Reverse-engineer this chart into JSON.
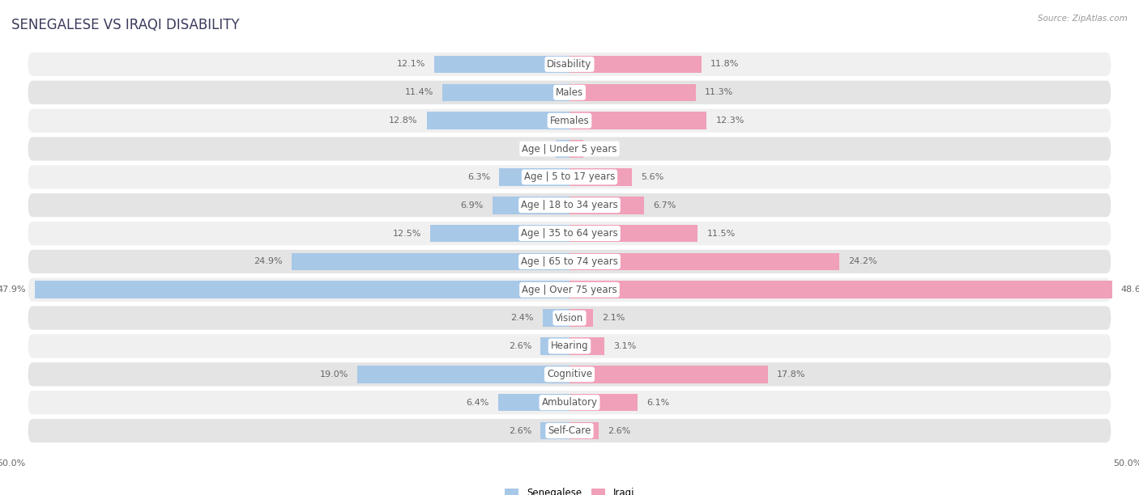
{
  "title": "SENEGALESE VS IRAQI DISABILITY",
  "source": "Source: ZipAtlas.com",
  "categories": [
    "Disability",
    "Males",
    "Females",
    "Age | Under 5 years",
    "Age | 5 to 17 years",
    "Age | 18 to 34 years",
    "Age | 35 to 64 years",
    "Age | 65 to 74 years",
    "Age | Over 75 years",
    "Vision",
    "Hearing",
    "Cognitive",
    "Ambulatory",
    "Self-Care"
  ],
  "senegalese": [
    12.1,
    11.4,
    12.8,
    1.2,
    6.3,
    6.9,
    12.5,
    24.9,
    47.9,
    2.4,
    2.6,
    19.0,
    6.4,
    2.6
  ],
  "iraqi": [
    11.8,
    11.3,
    12.3,
    1.2,
    5.6,
    6.7,
    11.5,
    24.2,
    48.6,
    2.1,
    3.1,
    17.8,
    6.1,
    2.6
  ],
  "color_senegalese": "#a8c8e8",
  "color_iraqi": "#f0a0b8",
  "bg_color": "#ffffff",
  "row_bg_odd": "#f0f0f0",
  "row_bg_even": "#e4e4e4",
  "axis_max": 50.0,
  "title_fontsize": 12,
  "label_fontsize": 8.5,
  "value_fontsize": 8.0,
  "title_color": "#3a3a5c",
  "value_color": "#666666",
  "source_color": "#999999"
}
